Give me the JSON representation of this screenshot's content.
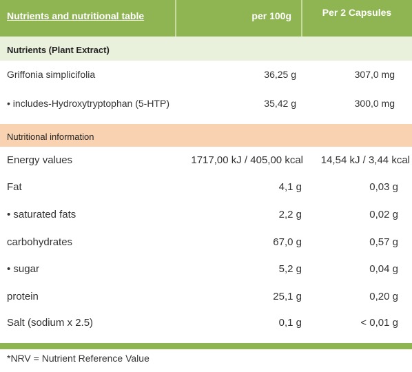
{
  "header": {
    "title": "Nutrients and nutritional table",
    "col1": "per 100g",
    "col2": "Per 2 Capsules"
  },
  "nutrients": {
    "section_label": "Nutrients (Plant Extract)",
    "rows": [
      {
        "label": "Griffonia simplicifolia",
        "per100": "36,25 g",
        "per2": "307,0 mg"
      },
      {
        "label": "• includes-Hydroxytryptophan (5-HTP)",
        "per100": "35,42 g",
        "per2": "300,0 mg"
      }
    ]
  },
  "nutritional": {
    "section_label": "Nutritional information",
    "rows": [
      {
        "label": "Energy values",
        "per100": "1717,00 kJ / 405,00 kcal",
        "per2": "14,54 kJ / 3,44 kcal"
      },
      {
        "label": "Fat",
        "per100": "4,1 g",
        "per2": "0,03 g"
      },
      {
        "label": "• saturated fats",
        "per100": "2,2 g",
        "per2": "0,02 g"
      },
      {
        "label": "carbohydrates",
        "per100": "67,0 g",
        "per2": "0,57 g"
      },
      {
        "label": "• sugar",
        "per100": "5,2 g",
        "per2": "0,04 g"
      },
      {
        "label": "protein",
        "per100": "25,1 g",
        "per2": "0,20 g"
      },
      {
        "label": "Salt (sodium x 2.5)",
        "per100": "0,1 g",
        "per2": "< 0,01 g"
      }
    ]
  },
  "footnote": "*NRV = Nutrient Reference Value",
  "colors": {
    "header_green": "#8fb552",
    "nutrients_bg": "#e9f1dc",
    "nutritional_bg": "#f9d3b1"
  }
}
